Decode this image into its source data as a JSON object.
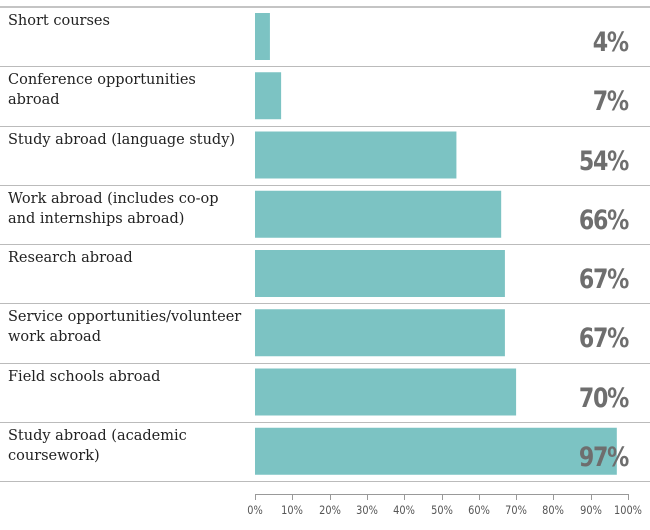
{
  "chart_data": {
    "type": "bar",
    "orientation": "horizontal",
    "categories": [
      "Short courses",
      "Conference opportunities abroad",
      "Study abroad (language study)",
      "Work abroad (includes co-op and internships abroad)",
      "Research abroad",
      "Service opportunities/volunteer work abroad",
      "Field schools abroad",
      "Study abroad (academic coursework)"
    ],
    "values": [
      4,
      7,
      54,
      66,
      67,
      67,
      70,
      97
    ],
    "value_labels": [
      "4%",
      "7%",
      "54%",
      "66%",
      "67%",
      "67%",
      "70%",
      "97%"
    ],
    "xlim": [
      0,
      100
    ],
    "xticks": [
      "0%",
      "10%",
      "20%",
      "30%",
      "40%",
      "50%",
      "60%",
      "70%",
      "80%",
      "90%",
      "100%"
    ],
    "bar_color": "#7cc3c3",
    "grid": false,
    "legend": "none"
  }
}
